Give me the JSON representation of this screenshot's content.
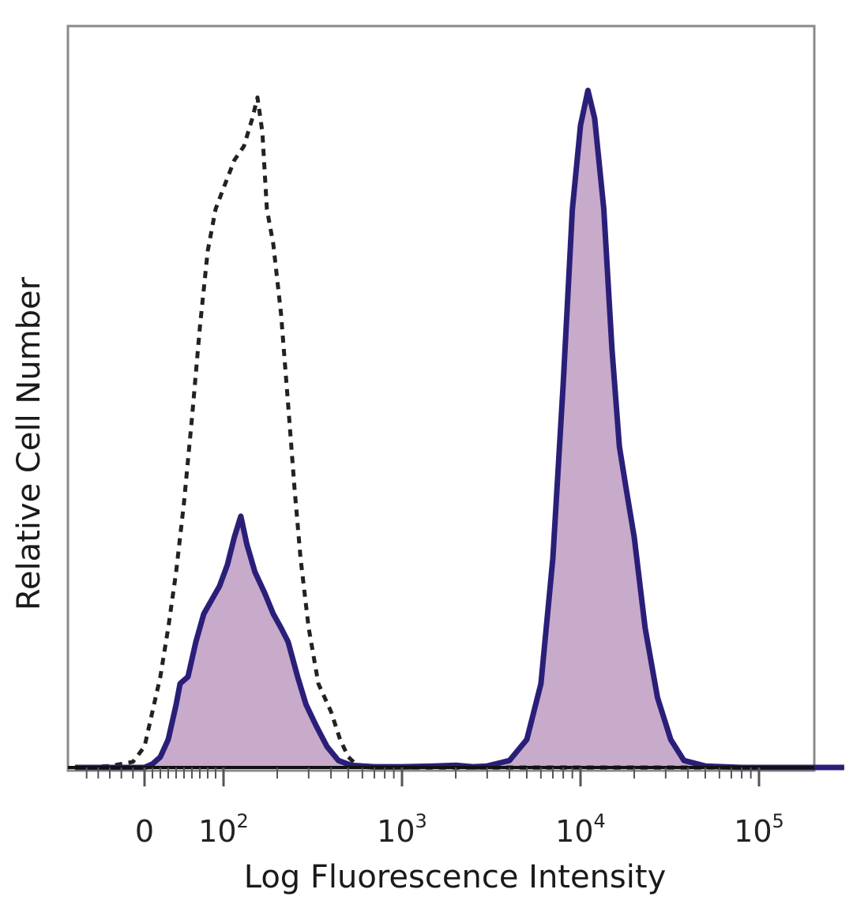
{
  "chart_data": {
    "type": "area",
    "xlabel": "Log Fluorescence Intensity",
    "ylabel": "Relative Cell Number",
    "x_scale": "biexponential",
    "xlim": [
      -60,
      300000
    ],
    "ylim": [
      0,
      100
    ],
    "x_tick_labels": [
      {
        "value": 0,
        "base": "0",
        "exp": ""
      },
      {
        "value": 100,
        "base": "10",
        "exp": "2"
      },
      {
        "value": 1000,
        "base": "10",
        "exp": "3"
      },
      {
        "value": 10000,
        "base": "10",
        "exp": "4"
      },
      {
        "value": 100000,
        "base": "10",
        "exp": "5"
      }
    ],
    "colors": {
      "fill": "#c8aacb",
      "stained_line": "#2a1f78",
      "control_line": "#222222",
      "frame": "#8a8a8a"
    },
    "series": [
      {
        "style": "dashed",
        "points": [
          [
            -60,
            0
          ],
          [
            -30,
            0.2
          ],
          [
            -10,
            0.8
          ],
          [
            0,
            3
          ],
          [
            10,
            8
          ],
          [
            20,
            13
          ],
          [
            30,
            20
          ],
          [
            40,
            28
          ],
          [
            50,
            38
          ],
          [
            60,
            50
          ],
          [
            70,
            63
          ],
          [
            80,
            74
          ],
          [
            90,
            80
          ],
          [
            100,
            83
          ],
          [
            115,
            87
          ],
          [
            130,
            89
          ],
          [
            145,
            93
          ],
          [
            155,
            96
          ],
          [
            165,
            91
          ],
          [
            175,
            80
          ],
          [
            190,
            75
          ],
          [
            210,
            65
          ],
          [
            230,
            52
          ],
          [
            250,
            40
          ],
          [
            270,
            30
          ],
          [
            300,
            20
          ],
          [
            340,
            12
          ],
          [
            400,
            8
          ],
          [
            450,
            4
          ],
          [
            500,
            1.5
          ],
          [
            560,
            0.3
          ],
          [
            700,
            0
          ],
          [
            10000,
            0
          ],
          [
            300000,
            0
          ]
        ]
      },
      {
        "style": "filled",
        "points": [
          [
            -60,
            0
          ],
          [
            -30,
            0
          ],
          [
            0,
            0
          ],
          [
            10,
            0.5
          ],
          [
            20,
            1.5
          ],
          [
            30,
            4
          ],
          [
            40,
            9
          ],
          [
            45,
            12
          ],
          [
            55,
            13
          ],
          [
            65,
            18
          ],
          [
            75,
            22
          ],
          [
            85,
            24
          ],
          [
            95,
            26
          ],
          [
            105,
            29
          ],
          [
            115,
            33
          ],
          [
            125,
            36
          ],
          [
            135,
            32
          ],
          [
            150,
            28
          ],
          [
            170,
            25
          ],
          [
            190,
            22
          ],
          [
            210,
            20
          ],
          [
            230,
            18
          ],
          [
            260,
            13
          ],
          [
            290,
            9
          ],
          [
            330,
            6
          ],
          [
            380,
            3
          ],
          [
            440,
            1
          ],
          [
            520,
            0.3
          ],
          [
            700,
            0.1
          ],
          [
            1000,
            0.1
          ],
          [
            1500,
            0.2
          ],
          [
            2000,
            0.3
          ],
          [
            2500,
            0.1
          ],
          [
            3000,
            0.2
          ],
          [
            4000,
            1
          ],
          [
            5000,
            4
          ],
          [
            6000,
            12
          ],
          [
            7000,
            30
          ],
          [
            8000,
            55
          ],
          [
            9000,
            80
          ],
          [
            10000,
            92
          ],
          [
            11000,
            97
          ],
          [
            12000,
            93
          ],
          [
            13500,
            80
          ],
          [
            15000,
            60
          ],
          [
            16500,
            46
          ],
          [
            18000,
            40
          ],
          [
            20000,
            33
          ],
          [
            23000,
            20
          ],
          [
            27000,
            10
          ],
          [
            32000,
            4
          ],
          [
            38000,
            1
          ],
          [
            50000,
            0.2
          ],
          [
            80000,
            0
          ],
          [
            300000,
            0
          ]
        ]
      }
    ]
  }
}
